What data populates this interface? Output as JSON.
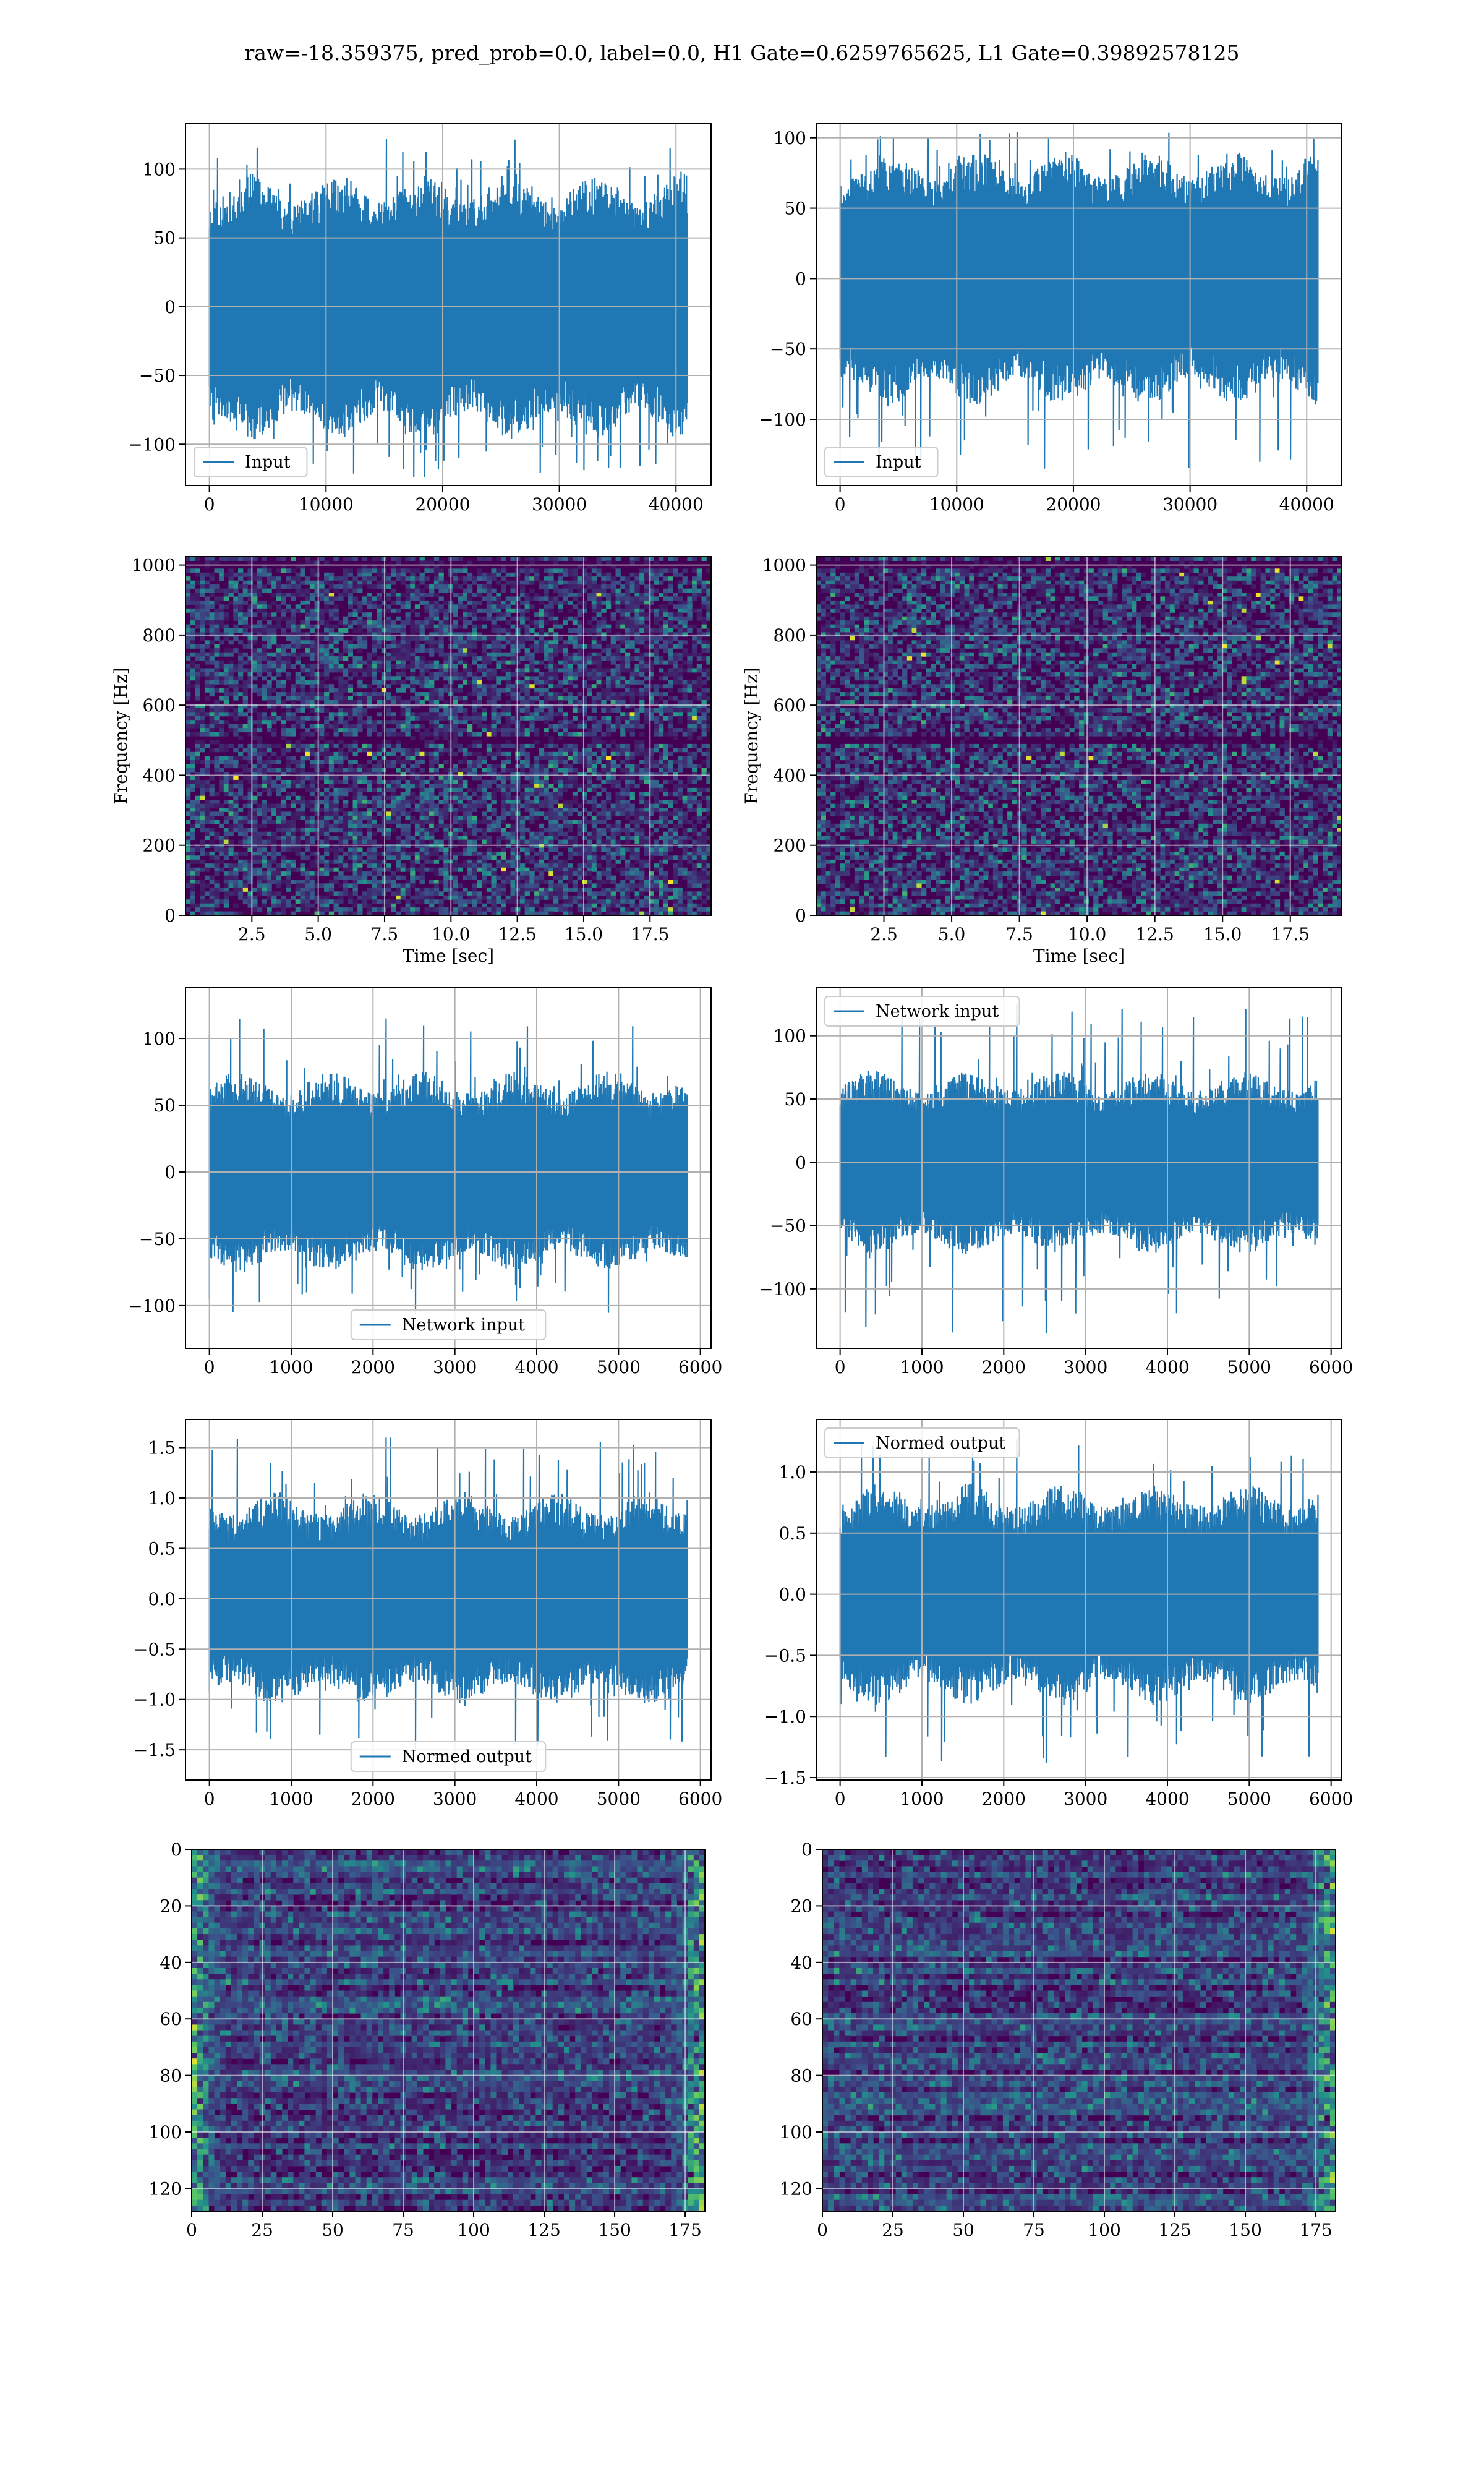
{
  "figure": {
    "title": "raw=-18.359375, pred_prob=0.0, label=0.0, H1 Gate=0.6259765625, L1 Gate=0.39892578125"
  },
  "chart_data": [
    {
      "id": "h1-input",
      "type": "line",
      "legend": [
        "Input"
      ],
      "legend_position": "lower-left",
      "color": "#1f77b4",
      "grid": true,
      "x_range": [
        0,
        40959
      ],
      "xlim": [
        -2048,
        43007
      ],
      "ylim": [
        -130,
        133
      ],
      "xticks": [
        0,
        10000,
        20000,
        30000,
        40000
      ],
      "xtick_labels": [
        "0",
        "10000",
        "20000",
        "30000",
        "40000"
      ],
      "yticks": [
        -100,
        -50,
        0,
        50,
        100
      ],
      "ytick_labels": [
        "−100",
        "−50",
        "0",
        "50",
        "100"
      ],
      "noise": {
        "n": 700,
        "bulk": 64,
        "peak": 122,
        "trough": -124,
        "seed": 11
      }
    },
    {
      "id": "l1-input",
      "type": "line",
      "legend": [
        "Input"
      ],
      "legend_position": "lower-left",
      "color": "#1f77b4",
      "grid": true,
      "x_range": [
        0,
        40959
      ],
      "xlim": [
        -2048,
        43007
      ],
      "ylim": [
        -147,
        110
      ],
      "xticks": [
        0,
        10000,
        20000,
        30000,
        40000
      ],
      "xtick_labels": [
        "0",
        "10000",
        "20000",
        "30000",
        "40000"
      ],
      "yticks": [
        -100,
        -50,
        0,
        50,
        100
      ],
      "ytick_labels": [
        "−100",
        "−50",
        "0",
        "50",
        "100"
      ],
      "noise": {
        "n": 700,
        "bulk": 60,
        "peak": 104,
        "trough": -135,
        "seed": 23
      }
    },
    {
      "id": "h1-spectrogram",
      "type": "heatmap",
      "colormap": "viridis",
      "grid": true,
      "xlabel": "Time [sec]",
      "ylabel": "Frequency [Hz]",
      "xlim": [
        0,
        19.8
      ],
      "ylim": [
        0,
        1024
      ],
      "xticks": [
        2.5,
        5.0,
        7.5,
        10.0,
        12.5,
        15.0,
        17.5
      ],
      "xtick_labels": [
        "2.5",
        "5.0",
        "7.5",
        "10.0",
        "12.5",
        "15.0",
        "17.5"
      ],
      "yticks": [
        0,
        200,
        400,
        600,
        800,
        1000
      ],
      "ytick_labels": [
        "0",
        "200",
        "400",
        "600",
        "800",
        "1000"
      ],
      "cells": {
        "cols": 110,
        "rows": 90,
        "seed": 5,
        "dark_bands_hz": [
          500,
          1000
        ]
      }
    },
    {
      "id": "l1-spectrogram",
      "type": "heatmap",
      "colormap": "viridis",
      "grid": true,
      "xlabel": "Time [sec]",
      "ylabel": "Frequency [Hz]",
      "xlim": [
        0,
        19.4
      ],
      "ylim": [
        0,
        1024
      ],
      "xticks": [
        2.5,
        5.0,
        7.5,
        10.0,
        12.5,
        15.0,
        17.5
      ],
      "xtick_labels": [
        "2.5",
        "5.0",
        "7.5",
        "10.0",
        "12.5",
        "15.0",
        "17.5"
      ],
      "yticks": [
        0,
        200,
        400,
        600,
        800,
        1000
      ],
      "ytick_labels": [
        "0",
        "200",
        "400",
        "600",
        "800",
        "1000"
      ],
      "cells": {
        "cols": 110,
        "rows": 90,
        "seed": 9,
        "dark_bands_hz": [
          500,
          1000
        ]
      }
    },
    {
      "id": "h1-network-input",
      "type": "line",
      "legend": [
        "Network input"
      ],
      "legend_position": "lower-center",
      "color": "#1f77b4",
      "grid": true,
      "x_range": [
        0,
        5839
      ],
      "xlim": [
        -292,
        6131
      ],
      "ylim": [
        -132,
        138
      ],
      "xticks": [
        0,
        1000,
        2000,
        3000,
        4000,
        5000,
        6000
      ],
      "xtick_labels": [
        "0",
        "1000",
        "2000",
        "3000",
        "4000",
        "5000",
        "6000"
      ],
      "yticks": [
        -100,
        -50,
        0,
        50,
        100
      ],
      "ytick_labels": [
        "−100",
        "−50",
        "0",
        "50",
        "100"
      ],
      "noise": {
        "n": 650,
        "bulk": 50,
        "peak": 115,
        "trough": -106,
        "seed": 31
      }
    },
    {
      "id": "l1-network-input",
      "type": "line",
      "legend": [
        "Network input"
      ],
      "legend_position": "upper-left",
      "color": "#1f77b4",
      "grid": true,
      "x_range": [
        0,
        5839
      ],
      "xlim": [
        -292,
        6131
      ],
      "ylim": [
        -147,
        138
      ],
      "xticks": [
        0,
        1000,
        2000,
        3000,
        4000,
        5000,
        6000
      ],
      "xtick_labels": [
        "0",
        "1000",
        "2000",
        "3000",
        "4000",
        "5000",
        "6000"
      ],
      "yticks": [
        -100,
        -50,
        0,
        50,
        100
      ],
      "ytick_labels": [
        "−100",
        "−50",
        "0",
        "50",
        "100"
      ],
      "noise": {
        "n": 650,
        "bulk": 48,
        "peak": 125,
        "trough": -135,
        "seed": 37
      }
    },
    {
      "id": "h1-normed-output",
      "type": "line",
      "legend": [
        "Normed output"
      ],
      "legend_position": "lower-center",
      "color": "#1f77b4",
      "grid": true,
      "x_range": [
        0,
        5839
      ],
      "xlim": [
        -292,
        6131
      ],
      "ylim": [
        -1.8,
        1.78
      ],
      "xticks": [
        0,
        1000,
        2000,
        3000,
        4000,
        5000,
        6000
      ],
      "xtick_labels": [
        "0",
        "1000",
        "2000",
        "3000",
        "4000",
        "5000",
        "6000"
      ],
      "yticks": [
        -1.5,
        -1.0,
        -0.5,
        0.0,
        0.5,
        1.0,
        1.5
      ],
      "ytick_labels": [
        "−1.5",
        "−1.0",
        "−0.5",
        "0.0",
        "0.5",
        "1.0",
        "1.5"
      ],
      "noise": {
        "n": 650,
        "bulk": 0.7,
        "peak": 1.6,
        "trough": -1.5,
        "seed": 41
      }
    },
    {
      "id": "l1-normed-output",
      "type": "line",
      "legend": [
        "Normed output"
      ],
      "legend_position": "upper-left",
      "color": "#1f77b4",
      "grid": true,
      "x_range": [
        0,
        5839
      ],
      "xlim": [
        -292,
        6131
      ],
      "ylim": [
        -1.52,
        1.43
      ],
      "xticks": [
        0,
        1000,
        2000,
        3000,
        4000,
        5000,
        6000
      ],
      "xtick_labels": [
        "0",
        "1000",
        "2000",
        "3000",
        "4000",
        "5000",
        "6000"
      ],
      "yticks": [
        -1.5,
        -1.0,
        -0.5,
        0.0,
        0.5,
        1.0
      ],
      "ytick_labels": [
        "−1.5",
        "−1.0",
        "−0.5",
        "0.0",
        "0.5",
        "1.0"
      ],
      "noise": {
        "n": 650,
        "bulk": 0.6,
        "peak": 1.27,
        "trough": -1.38,
        "seed": 43
      }
    },
    {
      "id": "h1-feature-map",
      "type": "heatmap",
      "colormap": "viridis",
      "grid": true,
      "xlim": [
        0,
        182
      ],
      "ylim": [
        128,
        0
      ],
      "xticks": [
        0,
        25,
        50,
        75,
        100,
        125,
        150,
        175
      ],
      "xtick_labels": [
        "0",
        "25",
        "50",
        "75",
        "100",
        "125",
        "150",
        "175"
      ],
      "yticks": [
        0,
        20,
        40,
        60,
        80,
        100,
        120
      ],
      "ytick_labels": [
        "0",
        "20",
        "40",
        "60",
        "80",
        "100",
        "120"
      ],
      "cells": {
        "cols": 91,
        "rows": 64,
        "seed": 51,
        "bright_edges": "left-right"
      }
    },
    {
      "id": "l1-feature-map",
      "type": "heatmap",
      "colormap": "viridis",
      "grid": true,
      "xlim": [
        0,
        182
      ],
      "ylim": [
        128,
        0
      ],
      "xticks": [
        0,
        25,
        50,
        75,
        100,
        125,
        150,
        175
      ],
      "xtick_labels": [
        "0",
        "25",
        "50",
        "75",
        "100",
        "125",
        "150",
        "175"
      ],
      "yticks": [
        0,
        20,
        40,
        60,
        80,
        100,
        120
      ],
      "ytick_labels": [
        "0",
        "20",
        "40",
        "60",
        "80",
        "100",
        "120"
      ],
      "cells": {
        "cols": 91,
        "rows": 64,
        "seed": 57,
        "bright_edges": "right"
      }
    }
  ]
}
